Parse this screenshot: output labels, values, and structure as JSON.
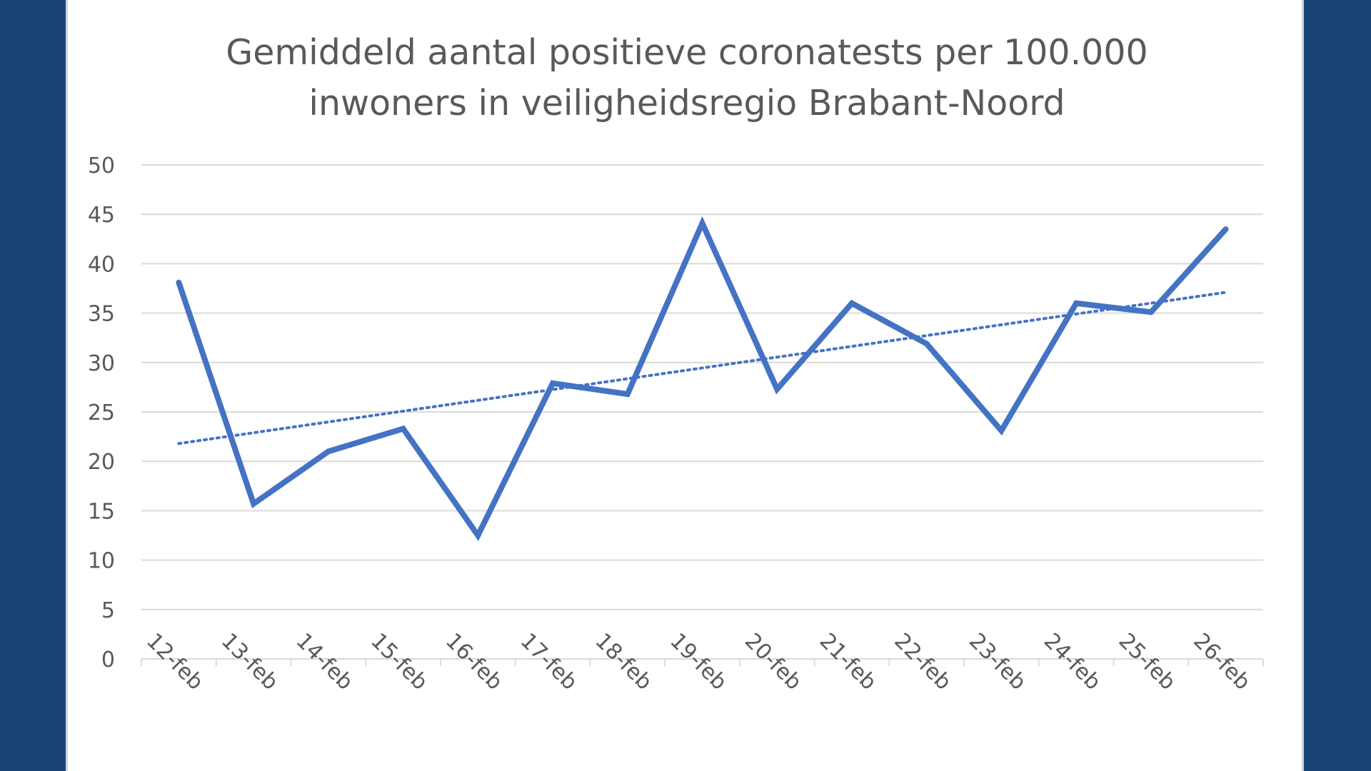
{
  "colors": {
    "background": "#1a4474",
    "panel": "#ffffff",
    "series": "#4472c4",
    "text": "#595959",
    "grid": "#d9d9d9"
  },
  "chart_data": {
    "type": "line",
    "title": [
      "Gemiddeld aantal positieve coronatests per 100.000",
      "inwoners in veiligheidsregio Brabant-Noord"
    ],
    "xlabel": "",
    "ylabel": "",
    "categories": [
      "12-feb",
      "13-feb",
      "14-feb",
      "15-feb",
      "16-feb",
      "17-feb",
      "18-feb",
      "19-feb",
      "20-feb",
      "21-feb",
      "22-feb",
      "23-feb",
      "24-feb",
      "25-feb",
      "26-feb"
    ],
    "series": [
      {
        "values": [
          38.1,
          15.7,
          21.0,
          23.3,
          12.5,
          27.9,
          26.8,
          44.1,
          27.3,
          36.0,
          31.9,
          23.1,
          36.0,
          35.1,
          43.5
        ]
      }
    ],
    "trendline": {
      "type": "linear",
      "style": "dotted",
      "start": 21.8,
      "end": 37.1
    },
    "ylim": [
      0,
      50
    ],
    "yticks": [
      0,
      5,
      10,
      15,
      20,
      25,
      30,
      35,
      40,
      45,
      50
    ],
    "grid": true,
    "legend": "none"
  }
}
